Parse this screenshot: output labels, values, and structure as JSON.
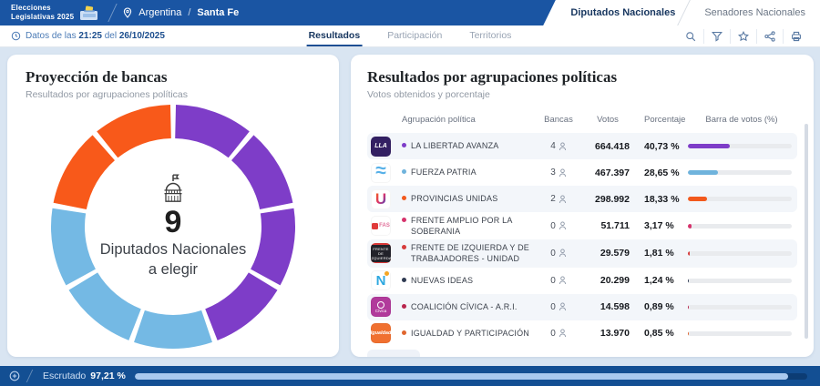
{
  "header": {
    "brand_line1": "Elecciones",
    "brand_line2": "Legislativas 2025",
    "location_country": "Argentina",
    "location_separator": "/",
    "location_region": "Santa Fe",
    "tabs": [
      {
        "label": "Diputados Nacionales",
        "active": true
      },
      {
        "label": "Senadores Nacionales",
        "active": false
      }
    ]
  },
  "subheader": {
    "data_prefix": "Datos de las",
    "data_time": "21:25",
    "data_mid": "del",
    "data_date": "26/10/2025",
    "tabs": [
      {
        "label": "Resultados",
        "active": true
      },
      {
        "label": "Participación",
        "active": false
      },
      {
        "label": "Territorios",
        "active": false
      }
    ],
    "action_icons": [
      "search",
      "filter",
      "star",
      "share",
      "print"
    ]
  },
  "seats_card": {
    "title": "Proyección de bancas",
    "subtitle": "Resultados por agrupaciones políticas",
    "center_value": "9",
    "center_line1": "Diputados Nacionales",
    "center_line2": "a elegir"
  },
  "results_card": {
    "title": "Resultados por agrupaciones políticas",
    "subtitle": "Votos obtenidos y porcentaje",
    "columns": {
      "party": "Agrupación política",
      "seats": "Bancas",
      "votes": "Votos",
      "pct": "Porcentaje",
      "bar": "Barra de votos (%)"
    },
    "rows": [
      {
        "party": "LA LIBERTAD AVANZA",
        "seats": "4",
        "votes": "664.418",
        "pct": "40,73 %",
        "pct_value": 40.73,
        "color": "#7e3dc8",
        "logo": {
          "kind": "text",
          "bg": "#332063",
          "fg": "#ffffff",
          "text": "LLA",
          "size": 7
        }
      },
      {
        "party": "FUERZA PATRIA",
        "seats": "3",
        "votes": "467.397",
        "pct": "28,65 %",
        "pct_value": 28.65,
        "color": "#6fb3dc",
        "logo": {
          "kind": "waves",
          "bg": "#ffffff",
          "fg": "#56b0e8"
        }
      },
      {
        "party": "PROVINCIAS UNIDAS",
        "seats": "2",
        "votes": "298.992",
        "pct": "18,33 %",
        "pct_value": 18.33,
        "color": "#f2591d",
        "logo": {
          "kind": "grad",
          "bg": "#ffffff"
        }
      },
      {
        "party": "FRENTE AMPLIO POR LA SOBERANIA",
        "seats": "0",
        "votes": "51.711",
        "pct": "3,17 %",
        "pct_value": 3.17,
        "color": "#d6336c",
        "logo": {
          "kind": "fas",
          "bg": "#ffffff"
        }
      },
      {
        "party": "FRENTE DE IZQUIERDA Y DE TRABAJADORES - UNIDAD",
        "seats": "0",
        "votes": "29.579",
        "pct": "1,81 %",
        "pct_value": 1.81,
        "color": "#d63b3b",
        "logo": {
          "kind": "fit",
          "bg": "#e03a3a"
        }
      },
      {
        "party": "NUEVAS IDEAS",
        "seats": "0",
        "votes": "20.299",
        "pct": "1,24 %",
        "pct_value": 1.24,
        "color": "#2f3b52",
        "logo": {
          "kind": "ndot",
          "bg": "#ffffff"
        }
      },
      {
        "party": "COALICIÓN CÍVICA - A.R.I.",
        "seats": "0",
        "votes": "14.598",
        "pct": "0,89 %",
        "pct_value": 0.89,
        "color": "#b8254d",
        "logo": {
          "kind": "civica",
          "bg": "#b13a9b"
        }
      },
      {
        "party": "IGUALDAD Y PARTICIPACIÓN",
        "seats": "0",
        "votes": "13.970",
        "pct": "0,85 %",
        "pct_value": 0.85,
        "color": "#e0662e",
        "logo": {
          "kind": "text",
          "bg": "#f07030",
          "fg": "#ffffff",
          "text": "Igualdad",
          "size": 5.5
        }
      }
    ]
  },
  "footer": {
    "label": "Escrutado",
    "value": "97,21 %",
    "percent": 97.21
  },
  "chart_data": [
    {
      "type": "pie",
      "donut": true,
      "title": "Proyección de bancas",
      "subtitle": "Resultados por agrupaciones políticas",
      "center_total": 9,
      "center_label": "Diputados Nacionales a elegir",
      "start_angle_deg": 0,
      "direction": "clockwise",
      "series": [
        {
          "name": "LA LIBERTAD AVANZA",
          "seats": 4,
          "color": "#7e3dc8"
        },
        {
          "name": "FUERZA PATRIA",
          "seats": 3,
          "color": "#74b9e4"
        },
        {
          "name": "PROVINCIAS UNIDAS",
          "seats": 2,
          "color": "#f8591a"
        }
      ]
    },
    {
      "type": "bar",
      "orientation": "horizontal",
      "title": "Resultados por agrupaciones políticas",
      "categories": [
        "LA LIBERTAD AVANZA",
        "FUERZA PATRIA",
        "PROVINCIAS UNIDAS",
        "FRENTE AMPLIO POR LA SOBERANIA",
        "FRENTE DE IZQUIERDA Y DE TRABAJADORES - UNIDAD",
        "NUEVAS IDEAS",
        "COALICIÓN CÍVICA - A.R.I.",
        "IGUALDAD Y PARTICIPACIÓN"
      ],
      "series": [
        {
          "name": "Porcentaje",
          "values": [
            40.73,
            28.65,
            18.33,
            3.17,
            1.81,
            1.24,
            0.89,
            0.85
          ]
        },
        {
          "name": "Votos",
          "values": [
            664418,
            467397,
            298992,
            51711,
            29579,
            20299,
            14598,
            13970
          ]
        },
        {
          "name": "Bancas",
          "values": [
            4,
            3,
            2,
            0,
            0,
            0,
            0,
            0
          ]
        }
      ],
      "xlim": [
        0,
        100
      ]
    }
  ]
}
